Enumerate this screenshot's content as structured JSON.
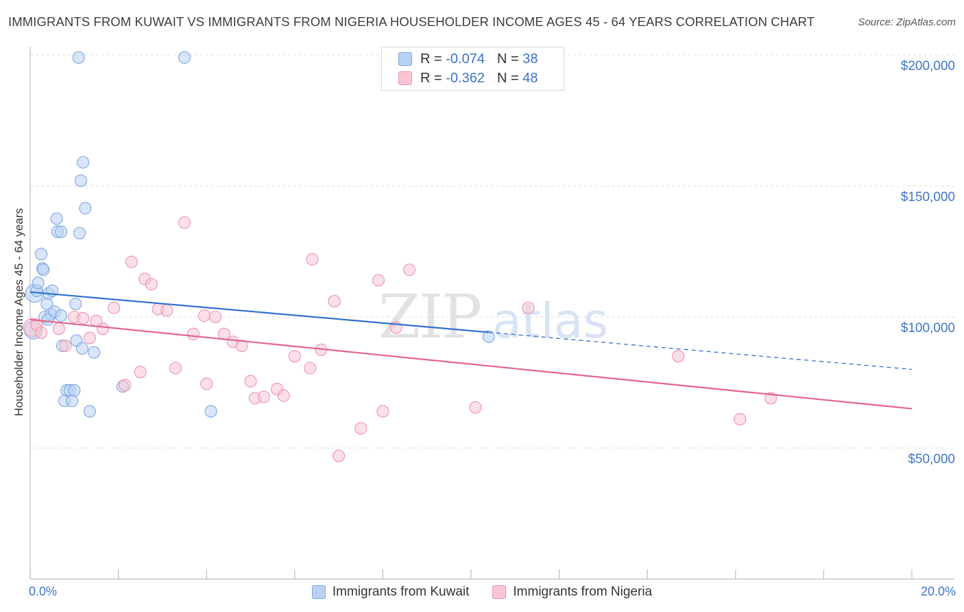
{
  "chart_data": {
    "type": "scatter",
    "title": "IMMIGRANTS FROM KUWAIT VS IMMIGRANTS FROM NIGERIA HOUSEHOLDER INCOME AGES 45 - 64 YEARS CORRELATION CHART",
    "source": "Source: ZipAtlas.com",
    "ylabel": "Householder Income Ages 45 - 64 years",
    "xlabel": "",
    "xlim": [
      0,
      20
    ],
    "ylim": [
      0,
      200000
    ],
    "x_tick_labels": {
      "left": "0.0%",
      "right": "20.0%"
    },
    "y_ticks": [
      {
        "value": 50000,
        "label": "$50,000"
      },
      {
        "value": 100000,
        "label": "$100,000"
      },
      {
        "value": 150000,
        "label": "$150,000"
      },
      {
        "value": 200000,
        "label": "$200,000"
      }
    ],
    "watermark": "ZIPatlas",
    "legend": [
      {
        "name": "Immigrants from Kuwait",
        "r_label": "R =",
        "r_value": "-0.074",
        "n_label": "N =",
        "n_value": "38"
      },
      {
        "name": "Immigrants from Nigeria",
        "r_label": "R =",
        "r_value": "-0.362",
        "n_label": "N =",
        "n_value": "48"
      }
    ],
    "series": [
      {
        "name": "Immigrants from Kuwait",
        "color": "#7ba6e3",
        "fill": "#b9d2f4",
        "trend": {
          "x0": 0,
          "y0": 109500,
          "x1": 20,
          "y1": 80000,
          "solid_until": 10.4
        },
        "points": [
          [
            0.07,
            95000
          ],
          [
            0.1,
            109000
          ],
          [
            0.15,
            110000
          ],
          [
            0.18,
            113000
          ],
          [
            0.25,
            124000
          ],
          [
            0.28,
            118500
          ],
          [
            0.3,
            118000
          ],
          [
            0.33,
            100000
          ],
          [
            0.38,
            105000
          ],
          [
            0.42,
            109000
          ],
          [
            0.47,
            101000
          ],
          [
            0.5,
            110000
          ],
          [
            0.55,
            102000
          ],
          [
            0.6,
            137500
          ],
          [
            0.62,
            132500
          ],
          [
            0.7,
            132500
          ],
          [
            0.73,
            89000
          ],
          [
            0.78,
            68000
          ],
          [
            0.83,
            72000
          ],
          [
            0.9,
            72000
          ],
          [
            0.95,
            68000
          ],
          [
            1.0,
            72000
          ],
          [
            1.03,
            105000
          ],
          [
            1.05,
            91000
          ],
          [
            1.1,
            199000
          ],
          [
            1.12,
            132000
          ],
          [
            1.15,
            152000
          ],
          [
            1.18,
            88000
          ],
          [
            1.2,
            159000
          ],
          [
            1.25,
            141500
          ],
          [
            1.35,
            64000
          ],
          [
            1.45,
            86500
          ],
          [
            2.1,
            73500
          ],
          [
            3.5,
            199000
          ],
          [
            4.1,
            64000
          ],
          [
            10.4,
            92500
          ],
          [
            0.7,
            100500
          ],
          [
            0.4,
            99000
          ]
        ]
      },
      {
        "name": "Immigrants from Nigeria",
        "color": "#ec93ad",
        "fill": "#f9c6d4",
        "trend": {
          "x0": 0,
          "y0": 99000,
          "x1": 20,
          "y1": 65000,
          "solid_until": 20
        },
        "points": [
          [
            0.05,
            96000
          ],
          [
            0.15,
            97000
          ],
          [
            0.25,
            94000
          ],
          [
            0.65,
            95500
          ],
          [
            0.8,
            89000
          ],
          [
            1.0,
            100000
          ],
          [
            1.2,
            99500
          ],
          [
            1.35,
            92000
          ],
          [
            1.5,
            98500
          ],
          [
            1.65,
            95500
          ],
          [
            1.9,
            103500
          ],
          [
            2.15,
            74000
          ],
          [
            2.3,
            121000
          ],
          [
            2.5,
            79000
          ],
          [
            2.6,
            114500
          ],
          [
            2.75,
            112500
          ],
          [
            2.9,
            103000
          ],
          [
            3.1,
            102500
          ],
          [
            3.3,
            80500
          ],
          [
            3.5,
            136000
          ],
          [
            3.7,
            93500
          ],
          [
            3.95,
            100500
          ],
          [
            4.0,
            74500
          ],
          [
            4.2,
            100000
          ],
          [
            4.4,
            93500
          ],
          [
            4.6,
            90500
          ],
          [
            4.8,
            89000
          ],
          [
            5.0,
            75500
          ],
          [
            5.1,
            69000
          ],
          [
            5.3,
            69500
          ],
          [
            5.6,
            72500
          ],
          [
            5.75,
            70000
          ],
          [
            6.0,
            85000
          ],
          [
            6.35,
            80500
          ],
          [
            6.4,
            122000
          ],
          [
            6.6,
            87500
          ],
          [
            6.9,
            106000
          ],
          [
            7.0,
            47000
          ],
          [
            7.5,
            57500
          ],
          [
            7.9,
            114000
          ],
          [
            8.0,
            64000
          ],
          [
            8.3,
            96000
          ],
          [
            8.6,
            118000
          ],
          [
            10.1,
            65500
          ],
          [
            11.3,
            103500
          ],
          [
            14.7,
            85000
          ],
          [
            16.1,
            61000
          ],
          [
            16.8,
            69000
          ]
        ]
      }
    ]
  }
}
